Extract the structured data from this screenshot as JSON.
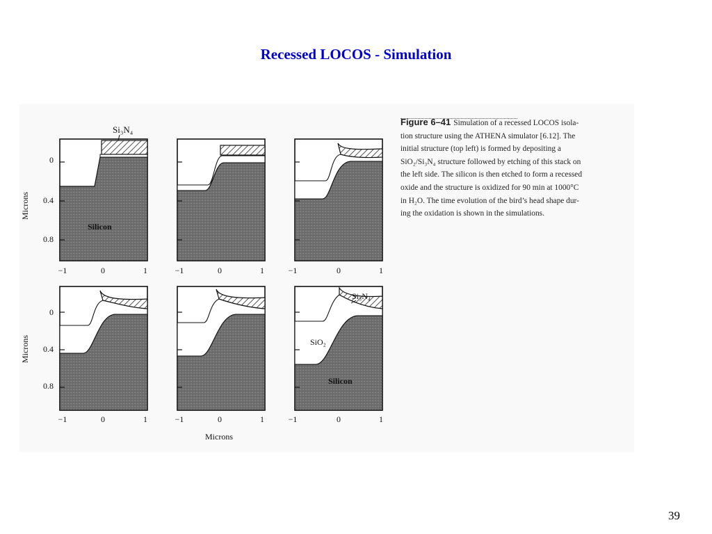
{
  "slide": {
    "title": "Recessed LOCOS - Simulation",
    "page_number": "39"
  },
  "figure": {
    "y_axis_label": "Microns",
    "x_axis_label": "Microns",
    "y_ticks": [
      "0",
      "0.4",
      "0.8"
    ],
    "x_ticks": [
      "−1",
      "0",
      "1"
    ],
    "labels": {
      "nitride": "Si₃N₄",
      "oxide": "SiO₂",
      "silicon": "Silicon"
    },
    "caption_label": "Figure 6–41",
    "caption_lines": [
      "Simulation of a recessed LOCOS isola-",
      "tion structure using the ATHENA simulator [6.12]. The",
      "initial structure (top left) is formed by depositing a",
      "SiO₂/Si₃N₄ structure followed by etching of this stack on",
      "the left side. The silicon is then etched to form a recessed",
      "oxide and the structure is oxidized for 90 min at 1000°C",
      "in H₂O. The time evolution of the bird’s head shape dur-",
      "ing the oxidation is shown in the simulations."
    ]
  },
  "colors": {
    "title": "#0000cc",
    "silicon_fill": "#6f6f6f",
    "panel_stroke": "#111111"
  }
}
